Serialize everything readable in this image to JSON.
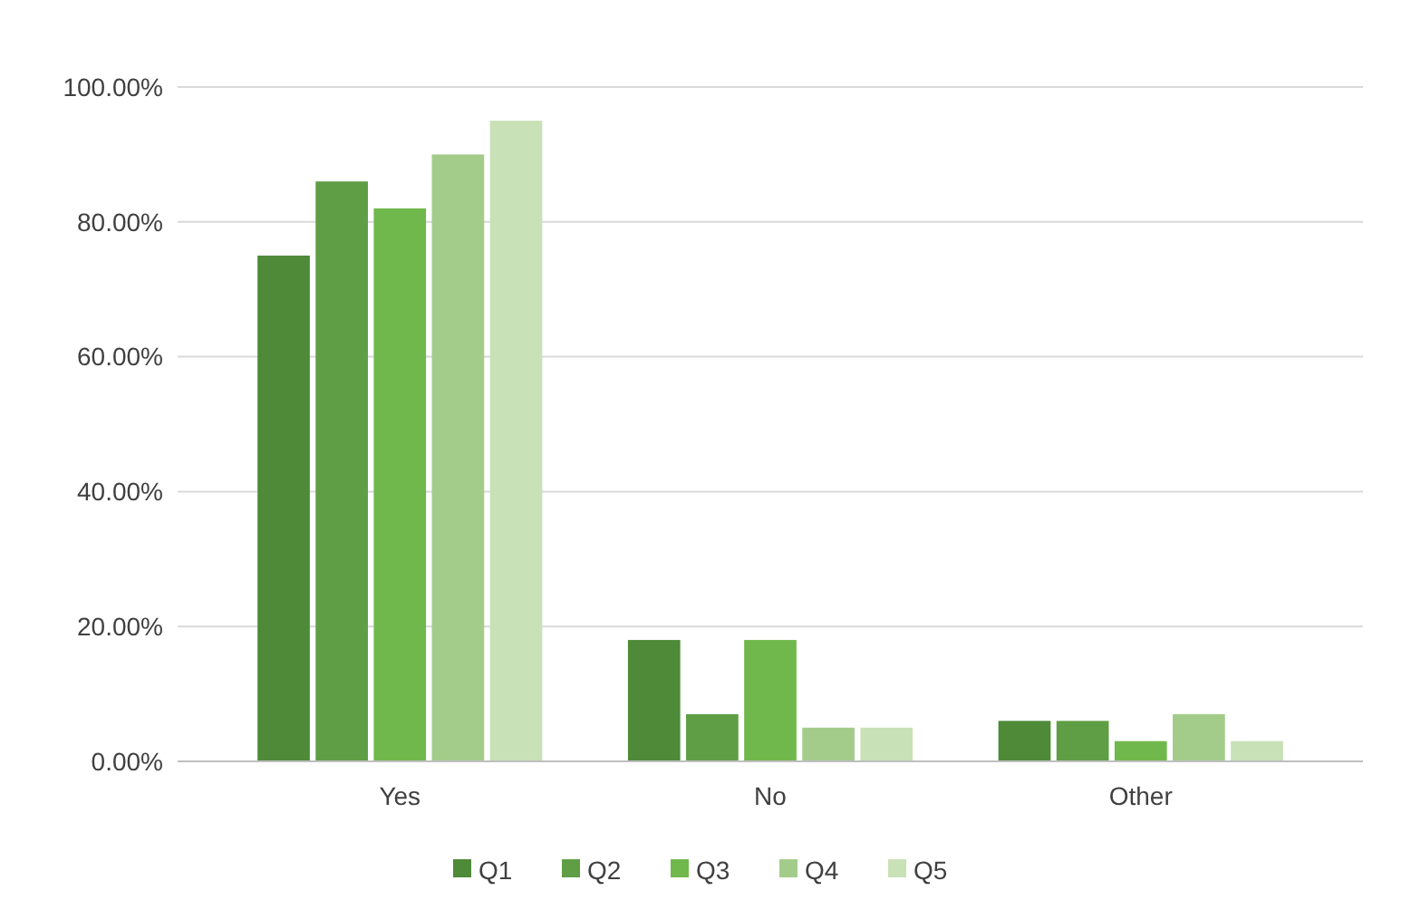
{
  "chart_data": {
    "type": "bar",
    "categories": [
      "Yes",
      "No",
      "Other"
    ],
    "series": [
      {
        "name": "Q1",
        "color": "#4e8a38",
        "values": [
          75,
          18,
          6
        ]
      },
      {
        "name": "Q2",
        "color": "#5f9e45",
        "values": [
          86,
          7,
          6
        ]
      },
      {
        "name": "Q3",
        "color": "#70b84c",
        "values": [
          82,
          18,
          3
        ]
      },
      {
        "name": "Q4",
        "color": "#a3cc8a",
        "values": [
          90,
          5,
          7
        ]
      },
      {
        "name": "Q5",
        "color": "#c8e1b6",
        "values": [
          95,
          5,
          3
        ]
      }
    ],
    "ylim": [
      0,
      100
    ],
    "yticks": [
      {
        "value": 0,
        "label": "0.00%"
      },
      {
        "value": 20,
        "label": "20.00%"
      },
      {
        "value": 40,
        "label": "40.00%"
      },
      {
        "value": 60,
        "label": "60.00%"
      },
      {
        "value": 80,
        "label": "80.00%"
      },
      {
        "value": 100,
        "label": "100.00%"
      }
    ],
    "grid": "y",
    "legend": "bottom"
  }
}
